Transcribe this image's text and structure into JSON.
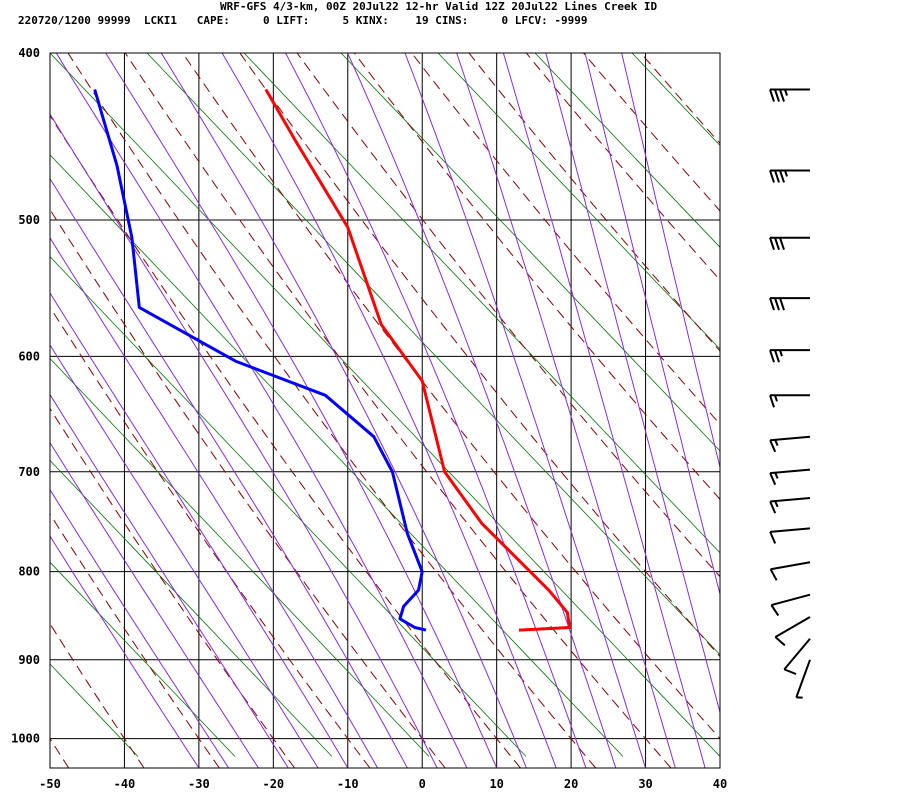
{
  "header": {
    "line1": "WRF-GFS 4/3-km, 00Z 20Jul22 12-hr Valid 12Z 20Jul22 Lines Creek ID",
    "line2": "220720/1200 99999  LCKI1   CAPE:     0 LIFT:     5 KINX:    19 CINS:     0 LFCV: -9999"
  },
  "chart_data": {
    "type": "line",
    "subtype": "skew-t log-p sounding",
    "xlabel": "",
    "ylabel": "",
    "x_ticks": [
      -50,
      -40,
      -30,
      -20,
      -10,
      0,
      10,
      20,
      30,
      40
    ],
    "y_ticks": [
      400,
      500,
      600,
      700,
      800,
      900,
      1000
    ],
    "xlim": [
      -50,
      40
    ],
    "ylim": [
      1040,
      400
    ],
    "y_scale": "log-pressure",
    "grid": true,
    "colors": {
      "temperature": "#ff0000",
      "dewpoint": "#0000ff",
      "dry_adiabat": "#8b0000",
      "moist_adiabat": "#8a2be2",
      "mixing_ratio": "#007700",
      "grid": "#000000"
    },
    "series": [
      {
        "key": "temperature",
        "points": [
          [
            13,
            865
          ],
          [
            19.8,
            862
          ],
          [
            19.5,
            845
          ],
          [
            17,
            820
          ],
          [
            8,
            750
          ],
          [
            3,
            700
          ],
          [
            0,
            620
          ],
          [
            -5.5,
            575
          ],
          [
            -10,
            505
          ],
          [
            -17,
            450
          ],
          [
            -21,
            420
          ]
        ]
      },
      {
        "key": "dewpoint",
        "points": [
          [
            0.5,
            865
          ],
          [
            -1,
            862
          ],
          [
            -3,
            852
          ],
          [
            -2.5,
            838
          ],
          [
            -0.5,
            820
          ],
          [
            0,
            800
          ],
          [
            -2,
            760
          ],
          [
            -4,
            700
          ],
          [
            -6.5,
            668
          ],
          [
            -13,
            632
          ],
          [
            -25,
            604
          ],
          [
            -38,
            562
          ],
          [
            -39,
            512
          ],
          [
            -41,
            465
          ],
          [
            -44,
            420
          ]
        ]
      }
    ],
    "wind_barbs": [
      {
        "p": 420,
        "speed": 35,
        "dir": 270
      },
      {
        "p": 468,
        "speed": 35,
        "dir": 270
      },
      {
        "p": 512,
        "speed": 30,
        "dir": 270
      },
      {
        "p": 555,
        "speed": 30,
        "dir": 270
      },
      {
        "p": 595,
        "speed": 25,
        "dir": 270
      },
      {
        "p": 632,
        "speed": 15,
        "dir": 270
      },
      {
        "p": 668,
        "speed": 15,
        "dir": 265
      },
      {
        "p": 698,
        "speed": 15,
        "dir": 265
      },
      {
        "p": 725,
        "speed": 15,
        "dir": 265
      },
      {
        "p": 755,
        "speed": 10,
        "dir": 265
      },
      {
        "p": 790,
        "speed": 10,
        "dir": 260
      },
      {
        "p": 825,
        "speed": 10,
        "dir": 255
      },
      {
        "p": 850,
        "speed": 10,
        "dir": 240
      },
      {
        "p": 875,
        "speed": 10,
        "dir": 220
      },
      {
        "p": 900,
        "speed": 5,
        "dir": 200
      }
    ]
  }
}
